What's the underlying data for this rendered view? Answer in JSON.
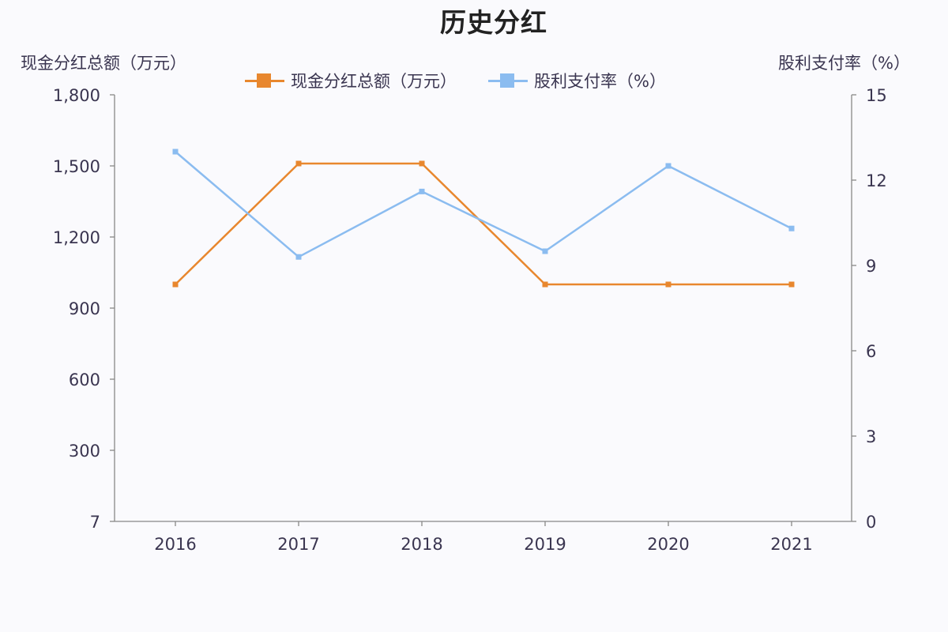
{
  "title": "历史分红",
  "legend": {
    "items": [
      {
        "label": "现金分红总额（万元）",
        "color": "#e8872e"
      },
      {
        "label": "股利支付率（%）",
        "color": "#8bbcf0"
      }
    ]
  },
  "chart_data": {
    "type": "line",
    "title": "历史分红",
    "categories": [
      "2016",
      "2017",
      "2018",
      "2019",
      "2020",
      "2021"
    ],
    "left_axis": {
      "label": "现金分红总额（万元）",
      "ticks": [
        "7",
        "300",
        "600",
        "900",
        "1,200",
        "1,500",
        "1,800"
      ],
      "ylim": [
        0,
        1800
      ]
    },
    "right_axis": {
      "label": "股利支付率（%）",
      "ticks": [
        "0",
        "3",
        "6",
        "9",
        "12",
        "15"
      ],
      "ylim": [
        0,
        15
      ]
    },
    "series": [
      {
        "name": "现金分红总额（万元）",
        "axis": "left",
        "color": "#e8872e",
        "values": [
          1000,
          1510,
          1510,
          1000,
          1000,
          1000
        ]
      },
      {
        "name": "股利支付率（%）",
        "axis": "right",
        "color": "#8bbcf0",
        "values": [
          13.0,
          9.3,
          11.6,
          9.5,
          12.5,
          10.3
        ]
      }
    ],
    "grid": false,
    "legend_position": "top"
  }
}
